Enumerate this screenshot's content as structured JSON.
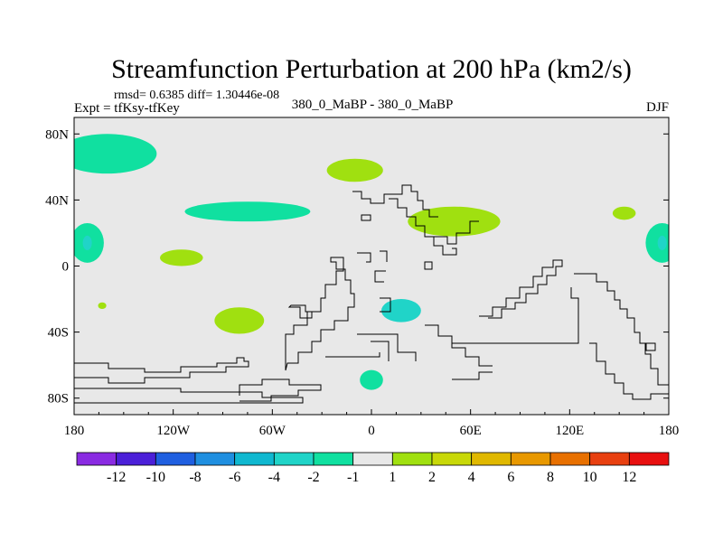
{
  "chart_data": {
    "type": "heatmap",
    "title": "Streamfunction Perturbation at 200 hPa (km2/s)",
    "stats": "rmsd= 0.6385 diff= 1.30446e-08",
    "subtitle_left": "Expt = tfKsy-tfKey",
    "subtitle_center": "380_0_MaBP - 380_0_MaBP",
    "subtitle_right": "DJF",
    "xlim": [
      -180,
      180
    ],
    "ylim": [
      -90,
      90
    ],
    "x_ticks": [
      {
        "value": -180,
        "label": "180"
      },
      {
        "value": -120,
        "label": "120W"
      },
      {
        "value": -60,
        "label": "60W"
      },
      {
        "value": 0,
        "label": "0"
      },
      {
        "value": 60,
        "label": "60E"
      },
      {
        "value": 120,
        "label": "120E"
      },
      {
        "value": 180,
        "label": "180"
      }
    ],
    "y_ticks": [
      {
        "value": 80,
        "label": "80N"
      },
      {
        "value": 40,
        "label": "40N"
      },
      {
        "value": 0,
        "label": "0"
      },
      {
        "value": -40,
        "label": "40S"
      },
      {
        "value": -80,
        "label": "80S"
      }
    ],
    "colorbar": {
      "colors": [
        "#8a2be2",
        "#4b1fd8",
        "#1f5fe0",
        "#1f8fe0",
        "#10b8d0",
        "#20d4c8",
        "#10e0a0",
        "#e8e8e8",
        "#a0e010",
        "#c8d808",
        "#e0b800",
        "#e89800",
        "#e87000",
        "#e84010",
        "#e81010"
      ],
      "labels": [
        "-12",
        "-10",
        "-8",
        "-6",
        "-4",
        "-2",
        "-1",
        "1",
        "2",
        "4",
        "6",
        "8",
        "10",
        "12"
      ]
    },
    "regions": [
      {
        "name": "north-pacific-low",
        "value": -1.5,
        "lon": -160,
        "lat": 68,
        "rlon": 30,
        "rlat": 12
      },
      {
        "name": "north-atlantic-low",
        "value": -1.5,
        "lon": -75,
        "lat": 33,
        "rlon": 38,
        "rlat": 6
      },
      {
        "name": "europe-high",
        "value": 1.5,
        "lon": -10,
        "lat": 58,
        "rlon": 17,
        "rlat": 7
      },
      {
        "name": "asia-high",
        "value": 1.5,
        "lon": 50,
        "lat": 27,
        "rlon": 28,
        "rlat": 9
      },
      {
        "name": "east-asia-high",
        "value": 1.5,
        "lon": 153,
        "lat": 32,
        "rlon": 7,
        "rlat": 4
      },
      {
        "name": "west-pacific-low",
        "value": -1.5,
        "lon": -172,
        "lat": 14,
        "rlon": 10,
        "rlat": 12
      },
      {
        "name": "east-pacific-low",
        "value": -1.5,
        "lon": 176,
        "lat": 14,
        "rlon": 10,
        "rlat": 12
      },
      {
        "name": "tropical-high",
        "value": 1.5,
        "lon": -115,
        "lat": 5,
        "rlon": 13,
        "rlat": 5
      },
      {
        "name": "south-pacific-high",
        "value": 1.5,
        "lon": -80,
        "lat": -33,
        "rlon": 15,
        "rlat": 8
      },
      {
        "name": "small-high",
        "value": 1.5,
        "lon": -163,
        "lat": -24,
        "rlon": 2.5,
        "rlat": 2
      },
      {
        "name": "south-atlantic-low",
        "value": -2.5,
        "lon": 18,
        "lat": -27,
        "rlon": 12,
        "rlat": 7
      },
      {
        "name": "southern-ocean-low",
        "value": -1.5,
        "lon": 0,
        "lat": -69,
        "rlon": 7,
        "rlat": 6
      }
    ]
  }
}
